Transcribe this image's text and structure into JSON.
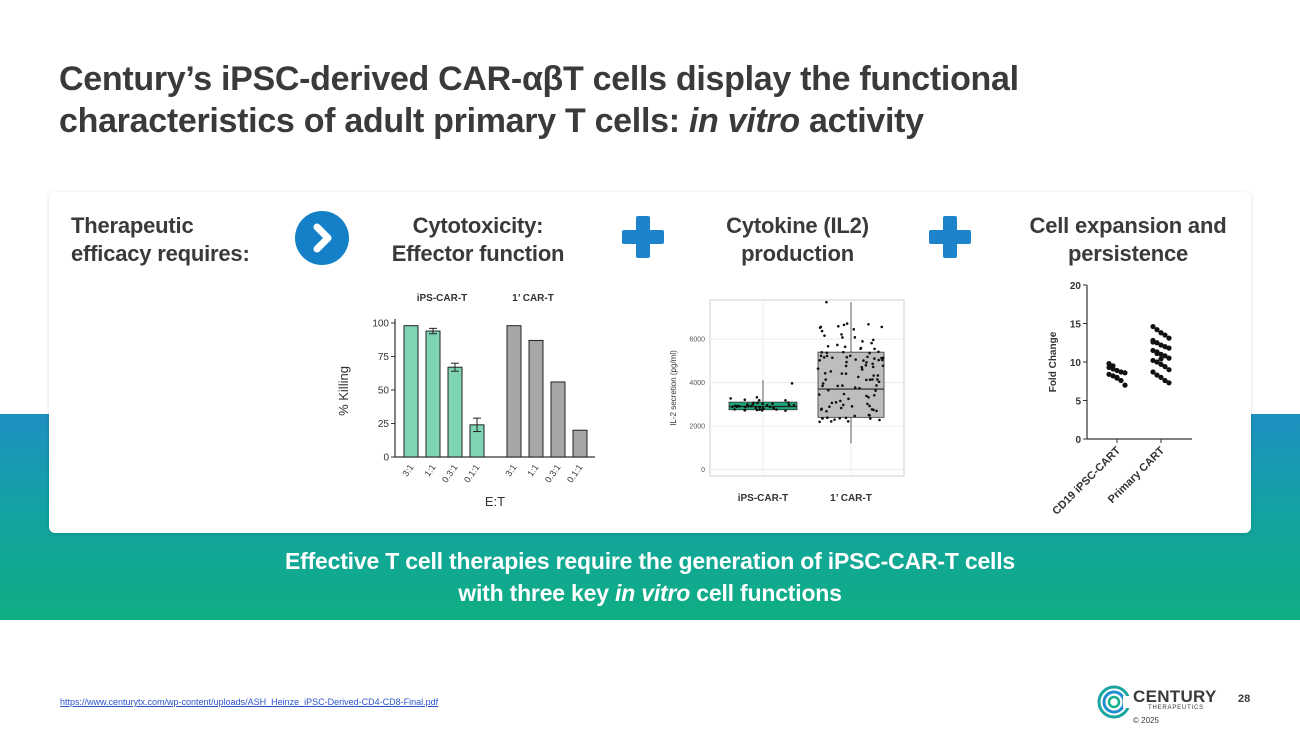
{
  "title": {
    "part1": "Century’s iPSC-derived CAR-αβT cells display the functional characteristics of adult primary T cells: ",
    "italic": "in vitro",
    "part2": " activity"
  },
  "card": {
    "requirement_line1": "Therapeutic",
    "requirement_line2": "efficacy requires:",
    "col1_line1": "Cytotoxicity:",
    "col1_line2": "Effector function",
    "col2_line1": "Cytokine (IL2)",
    "col2_line2": "production",
    "col3_line1": "Cell expansion and",
    "col3_line2": "persistence"
  },
  "tagline": {
    "line1": "Effective T cell therapies require the generation of iPSC-CAR-T cells",
    "line2_pre": "with three key ",
    "line2_italic": "in vitro",
    "line2_post": " cell functions"
  },
  "footer": {
    "link": "https://www.centurytx.com/wp-content/uploads/ASH_Heinze_iPSC-Derived-CD4-CD8-Final.pdf",
    "logo_name": "CENTURY",
    "logo_sub": "THERAPEUTICS",
    "copyright": "© 2025",
    "page": "28"
  },
  "colors": {
    "ipsc_bar": "#7fd4b4",
    "primary_bar": "#a6a6a6",
    "il2_ipsc_box": "#1aa57a",
    "il2_primary_box": "#bdbdbd",
    "accent_blue": "#1d84cc"
  },
  "chart_data": [
    {
      "type": "bar",
      "ylabel": "% Killing",
      "xlabel": "E:T",
      "ylim": [
        0,
        100
      ],
      "yticks": [
        "0",
        "25",
        "50",
        "75",
        "100"
      ],
      "groups": [
        "iPS-CAR-T",
        "1’ CAR-T"
      ],
      "categories": [
        "3:1",
        "1:1",
        "0.3:1",
        "0.1:1",
        "3:1",
        "1:1",
        "0.3:1",
        "0.1:1"
      ],
      "values": [
        98,
        94,
        67,
        24,
        98,
        87,
        56,
        20
      ],
      "errors": [
        0,
        2,
        3,
        5,
        0,
        0,
        0,
        0
      ]
    },
    {
      "type": "box",
      "ylabel": "IL-2 secretion (pg/ml)",
      "yticks": [
        "0",
        "2000",
        "4000",
        "6000"
      ],
      "ylim": [
        -300,
        7800
      ],
      "categories": [
        "iPS-CAR-T",
        "1’ CAR-T"
      ],
      "boxes": [
        {
          "min": 2700,
          "q1": 2750,
          "median": 2900,
          "q3": 3100,
          "max": 4100
        },
        {
          "min": 1200,
          "q1": 2400,
          "median": 3700,
          "q3": 5400,
          "max": 7700
        }
      ]
    },
    {
      "type": "scatter",
      "ylabel": "Fold Change",
      "ylim": [
        0,
        20
      ],
      "yticks": [
        "0",
        "5",
        "10",
        "15",
        "20"
      ],
      "categories": [
        "CD19 iPSC-CART",
        "Primary CART"
      ],
      "points": [
        [
          9.3,
          9.1,
          8.9,
          8.7,
          8.6,
          8.4,
          8.2,
          7.9,
          7.6,
          7.0,
          9.8,
          9.5,
          8.0
        ],
        [
          14.6,
          14.2,
          13.8,
          13.5,
          13.1,
          12.8,
          12.5,
          12.2,
          12.0,
          11.8,
          11.5,
          11.3,
          11.0,
          10.8,
          10.5,
          10.2,
          10.0,
          9.7,
          9.4,
          9.0,
          8.7,
          8.3,
          8.0,
          7.6,
          7.3,
          12.6,
          11.1,
          10.4
        ]
      ]
    }
  ]
}
